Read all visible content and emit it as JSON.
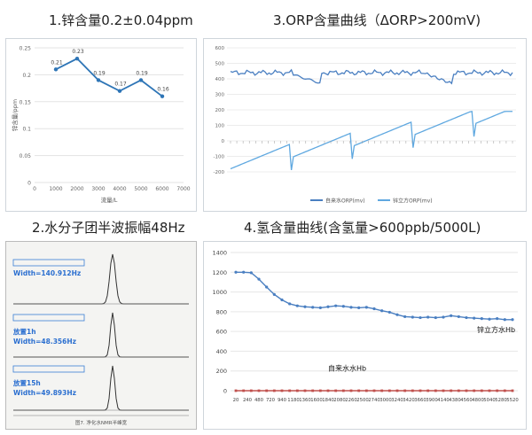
{
  "chart_data": [
    {
      "type": "line",
      "title": "1.锌含量0.2±0.04ppm",
      "xlabel": "流量/L",
      "ylabel": "锌含量/ppm",
      "x": [
        1000,
        2000,
        3000,
        4000,
        5000,
        6000
      ],
      "values": [
        0.21,
        0.23,
        0.19,
        0.17,
        0.19,
        0.16
      ],
      "data_labels": [
        "0.21",
        "0.23",
        "0.19",
        "0.17",
        "0.19",
        "0.16"
      ],
      "xlim": [
        0,
        7000
      ],
      "ylim": [
        0,
        0.25
      ],
      "xticks": [
        "0",
        "1000",
        "2000",
        "3000",
        "4000",
        "5000",
        "6000",
        "7000"
      ],
      "yticks": [
        "0",
        "0.05",
        "0.1",
        "0.15",
        "0.2",
        "0.25"
      ],
      "color": "#2e75b6",
      "grid": true
    },
    {
      "type": "line",
      "title": "3.ORP含量曲线（ΔORP>200mV)",
      "ylim": [
        -200,
        600
      ],
      "yticks": [
        "-200",
        "-100",
        "0",
        "100",
        "200",
        "300",
        "400",
        "500",
        "600"
      ],
      "series": [
        {
          "name": "自来水ORP(mv)",
          "color": "#4a7fc1",
          "level": "around 400-470, dips to ~360"
        },
        {
          "name": "锌立方ORP(mv)",
          "color": "#5fa8e0",
          "level": "rises from ~-180 to ~180 in saw-tooth"
        }
      ],
      "legend": "bottom",
      "grid": true
    },
    {
      "type": "photo",
      "title": "2.水分子团半波振幅48Hz",
      "labels": [
        {
          "text": "Width=140.912Hz"
        },
        {
          "text": "放置1h"
        },
        {
          "text": "Width=48.356Hz"
        },
        {
          "text": "放置15h"
        },
        {
          "text": "Width=49.893Hz"
        }
      ],
      "caption": "图7. 净化水NMR半峰宽"
    },
    {
      "type": "line",
      "title": "4.氢含量曲线(含氢量>600ppb/5000L)",
      "ylim": [
        0,
        1400
      ],
      "yticks": [
        "0",
        "200",
        "400",
        "600",
        "800",
        "1000",
        "1200",
        "1400"
      ],
      "xticks": [
        "20",
        "240",
        "480",
        "720",
        "940",
        "1180",
        "1360",
        "1600",
        "1840",
        "2080",
        "2260",
        "2500",
        "2740",
        "3000",
        "3240",
        "3420",
        "3660",
        "3900",
        "4140",
        "4380",
        "4560",
        "4800",
        "5040",
        "5280",
        "5520"
      ],
      "series": [
        {
          "name": "锌立方水Hb",
          "color": "#4a7fc1",
          "values": [
            1200,
            1200,
            1195,
            1130,
            1050,
            975,
            920,
            880,
            860,
            850,
            845,
            840,
            850,
            860,
            855,
            845,
            840,
            845,
            830,
            810,
            795,
            770,
            750,
            745,
            740,
            745,
            740,
            745,
            760,
            750,
            740,
            735,
            730,
            725,
            730,
            720,
            720
          ]
        },
        {
          "name": "自来水水Hb",
          "color": "#c0504d",
          "values": [
            0,
            0,
            0,
            0,
            0,
            0,
            0,
            0,
            0,
            0,
            0,
            0,
            0,
            0,
            0,
            0,
            0,
            0,
            0,
            0,
            0,
            0,
            0,
            0,
            0,
            0,
            0,
            0,
            0,
            0,
            0,
            0,
            0,
            0,
            0,
            0,
            0
          ]
        }
      ],
      "grid": true
    }
  ]
}
